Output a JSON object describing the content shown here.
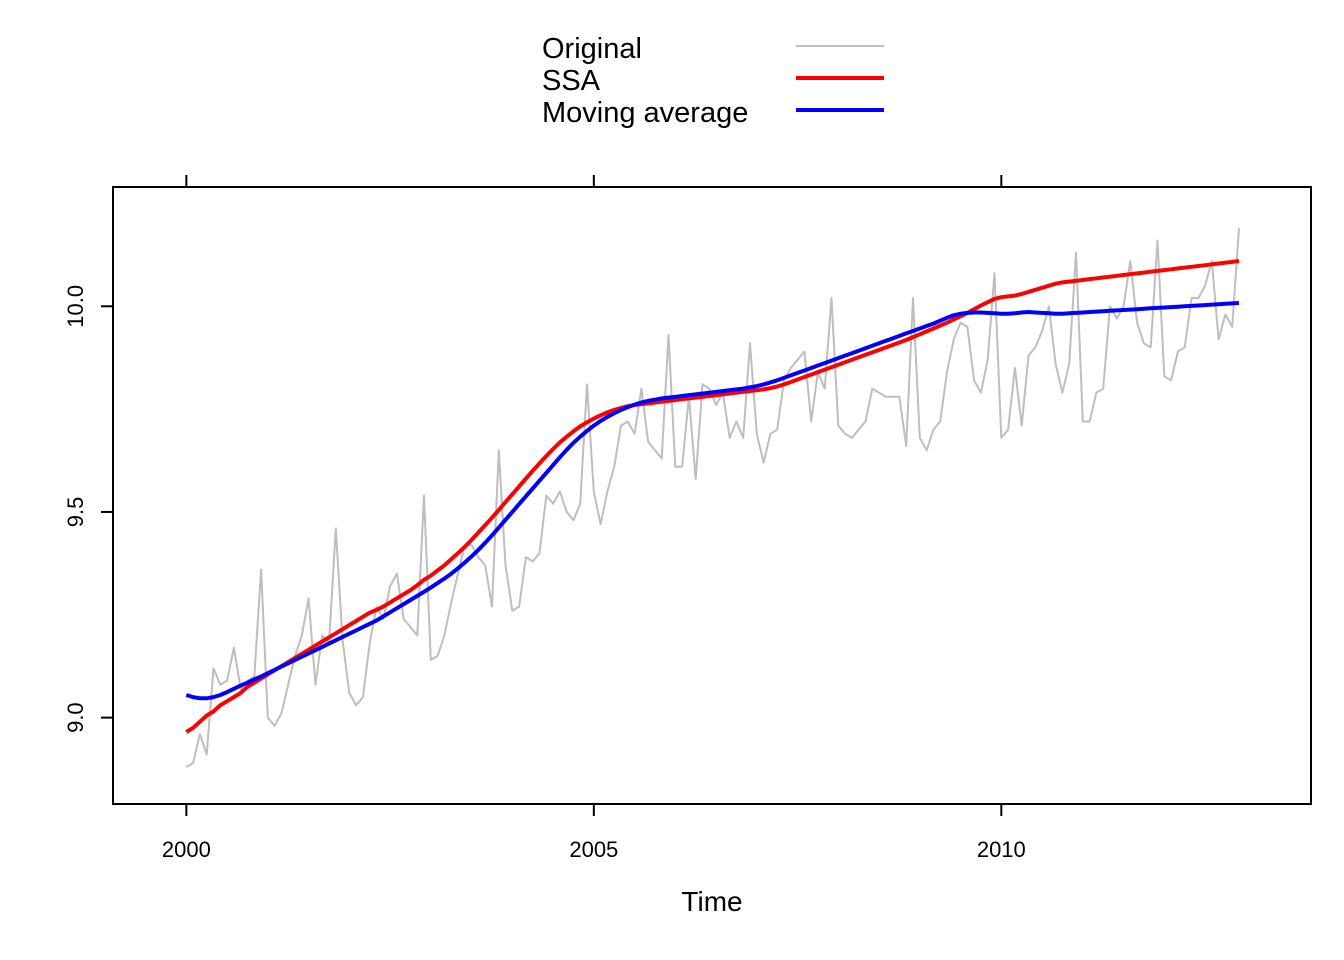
{
  "chart_data": {
    "type": "line",
    "title": "",
    "xlabel": "Time",
    "ylabel": "",
    "xlim": [
      1999.1,
      2013.8
    ],
    "ylim": [
      8.79,
      10.29
    ],
    "x_ticks": [
      2000,
      2005,
      2010
    ],
    "y_ticks": [
      9.0,
      9.5,
      10.0
    ],
    "x_tick_labels": [
      "2000",
      "2005",
      "2010"
    ],
    "y_tick_labels": [
      "9.0",
      "9.5",
      "10.0"
    ],
    "grid": false,
    "legend": {
      "position": "top-center"
    },
    "x_start": 2000,
    "frequency": 12,
    "series": [
      {
        "name": "Original",
        "color": "#bebebe",
        "values": [
          8.88,
          8.89,
          8.96,
          8.91,
          9.12,
          9.08,
          9.09,
          9.17,
          9.07,
          9.09,
          9.1,
          9.36,
          9.0,
          8.98,
          9.01,
          9.08,
          9.15,
          9.2,
          9.29,
          9.08,
          9.2,
          9.18,
          9.46,
          9.19,
          9.06,
          9.03,
          9.05,
          9.18,
          9.27,
          9.24,
          9.32,
          9.35,
          9.24,
          9.22,
          9.2,
          9.54,
          9.14,
          9.15,
          9.2,
          9.28,
          9.35,
          9.42,
          9.42,
          9.39,
          9.37,
          9.27,
          9.65,
          9.37,
          9.26,
          9.27,
          9.39,
          9.38,
          9.4,
          9.54,
          9.52,
          9.55,
          9.5,
          9.48,
          9.52,
          9.81,
          9.55,
          9.47,
          9.55,
          9.61,
          9.71,
          9.72,
          9.69,
          9.8,
          9.67,
          9.65,
          9.63,
          9.93,
          9.61,
          9.61,
          9.78,
          9.58,
          9.81,
          9.8,
          9.76,
          9.79,
          9.68,
          9.72,
          9.68,
          9.91,
          9.69,
          9.62,
          9.69,
          9.7,
          9.82,
          9.85,
          9.87,
          9.89,
          9.72,
          9.84,
          9.8,
          10.02,
          9.71,
          9.69,
          9.68,
          9.7,
          9.72,
          9.8,
          9.79,
          9.78,
          9.78,
          9.78,
          9.66,
          10.02,
          9.68,
          9.65,
          9.7,
          9.72,
          9.84,
          9.92,
          9.96,
          9.95,
          9.82,
          9.79,
          9.87,
          10.08,
          9.68,
          9.7,
          9.85,
          9.71,
          9.88,
          9.9,
          9.94,
          10.0,
          9.86,
          9.79,
          9.86,
          10.13,
          9.72,
          9.72,
          9.79,
          9.8,
          10.0,
          9.97,
          10.0,
          10.11,
          9.96,
          9.91,
          9.9,
          10.16,
          9.83,
          9.82,
          9.89,
          9.9,
          10.02,
          10.02,
          10.05,
          10.11,
          9.92,
          9.98,
          9.95,
          10.19
        ]
      },
      {
        "name": "SSA",
        "color": "#ff0000",
        "values": [
          8.965,
          8.975,
          8.99,
          9.005,
          9.015,
          9.03,
          9.04,
          9.05,
          9.06,
          9.075,
          9.085,
          9.095,
          9.105,
          9.115,
          9.125,
          9.135,
          9.145,
          9.155,
          9.165,
          9.175,
          9.185,
          9.195,
          9.205,
          9.215,
          9.225,
          9.235,
          9.245,
          9.255,
          9.262,
          9.27,
          9.28,
          9.29,
          9.3,
          9.31,
          9.322,
          9.335,
          9.345,
          9.358,
          9.37,
          9.385,
          9.4,
          9.415,
          9.432,
          9.45,
          9.468,
          9.486,
          9.505,
          9.524,
          9.543,
          9.562,
          9.581,
          9.6,
          9.618,
          9.636,
          9.653,
          9.669,
          9.683,
          9.696,
          9.708,
          9.718,
          9.727,
          9.735,
          9.742,
          9.748,
          9.753,
          9.757,
          9.76,
          9.762,
          9.764,
          9.766,
          9.768,
          9.77,
          9.772,
          9.774,
          9.776,
          9.778,
          9.78,
          9.782,
          9.784,
          9.786,
          9.788,
          9.79,
          9.792,
          9.794,
          9.796,
          9.798,
          9.801,
          9.805,
          9.81,
          9.816,
          9.822,
          9.828,
          9.834,
          9.84,
          9.846,
          9.852,
          9.858,
          9.864,
          9.87,
          9.876,
          9.882,
          9.888,
          9.894,
          9.9,
          9.906,
          9.912,
          9.918,
          9.925,
          9.932,
          9.939,
          9.946,
          9.953,
          9.96,
          9.968,
          9.976,
          9.984,
          9.993,
          10.002,
          10.01,
          10.018,
          10.022,
          10.024,
          10.026,
          10.03,
          10.035,
          10.04,
          10.045,
          10.05,
          10.055,
          10.058,
          10.06,
          10.062,
          10.064,
          10.066,
          10.068,
          10.07,
          10.072,
          10.074,
          10.076,
          10.078,
          10.08,
          10.082,
          10.084,
          10.086,
          10.088,
          10.09,
          10.092,
          10.094,
          10.096,
          10.098,
          10.1,
          10.102,
          10.104,
          10.106,
          10.108,
          10.11
        ]
      },
      {
        "name": "Moving average",
        "color": "#0000ff",
        "values": [
          9.055,
          9.05,
          9.047,
          9.047,
          9.05,
          9.055,
          9.062,
          9.07,
          9.078,
          9.085,
          9.093,
          9.1,
          9.108,
          9.116,
          9.124,
          9.132,
          9.14,
          9.148,
          9.156,
          9.164,
          9.172,
          9.18,
          9.188,
          9.196,
          9.204,
          9.212,
          9.22,
          9.228,
          9.236,
          9.246,
          9.256,
          9.266,
          9.276,
          9.286,
          9.296,
          9.306,
          9.316,
          9.327,
          9.338,
          9.35,
          9.363,
          9.377,
          9.392,
          9.408,
          9.425,
          9.443,
          9.462,
          9.481,
          9.5,
          9.519,
          9.538,
          9.557,
          9.576,
          9.595,
          9.614,
          9.633,
          9.651,
          9.668,
          9.683,
          9.697,
          9.71,
          9.721,
          9.731,
          9.74,
          9.748,
          9.755,
          9.761,
          9.766,
          9.77,
          9.773,
          9.776,
          9.778,
          9.78,
          9.782,
          9.784,
          9.786,
          9.788,
          9.79,
          9.792,
          9.794,
          9.796,
          9.798,
          9.8,
          9.803,
          9.806,
          9.81,
          9.815,
          9.82,
          9.826,
          9.832,
          9.838,
          9.844,
          9.85,
          9.856,
          9.862,
          9.868,
          9.874,
          9.88,
          9.886,
          9.892,
          9.898,
          9.904,
          9.91,
          9.916,
          9.922,
          9.928,
          9.934,
          9.94,
          9.946,
          9.952,
          9.958,
          9.965,
          9.972,
          9.978,
          9.982,
          9.984,
          9.985,
          9.985,
          9.984,
          9.983,
          9.982,
          9.982,
          9.983,
          9.985,
          9.986,
          9.985,
          9.984,
          9.983,
          9.982,
          9.982,
          9.983,
          9.984,
          9.985,
          9.986,
          9.987,
          9.988,
          9.989,
          9.99,
          9.991,
          9.992,
          9.993,
          9.994,
          9.995,
          9.996,
          9.997,
          9.998,
          9.999,
          10.0,
          10.001,
          10.002,
          10.003,
          10.004,
          10.005,
          10.006,
          10.007,
          10.008
        ]
      }
    ]
  }
}
